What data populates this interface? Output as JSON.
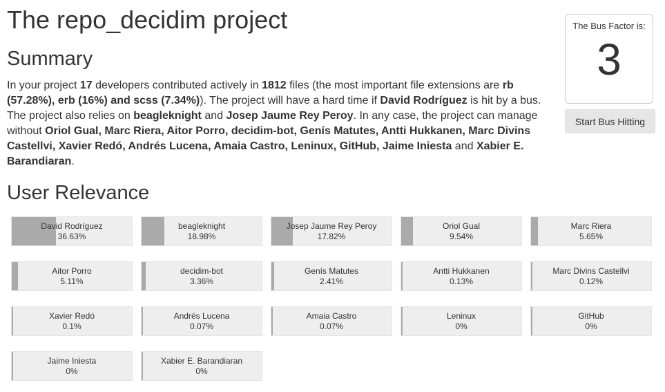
{
  "page": {
    "title": "The repo_decidim project"
  },
  "summary": {
    "title": "Summary",
    "p1": "In your project ",
    "dev_count": "17",
    "p2": " developers contributed actively in ",
    "file_count": "1812",
    "p3": " files (the most important file extensions are ",
    "ext1": "rb (57.28%)",
    "p4": ", ",
    "ext2": "erb (16%)",
    "p5": " and ",
    "ext3": "scss (7.34%)",
    "p6": "). The project will have a hard time if ",
    "critical_dev": "David Rodríguez",
    "p7": " is hit by a bus. The project also relies on ",
    "relies1": "beagleknight",
    "p8": " and ",
    "relies2": "Josep Jaume Rey Peroy",
    "p9": ". In any case, the project can manage without ",
    "without_list": "Oriol Gual, Marc Riera, Aitor Porro, decidim-bot, Genís Matutes, Antti Hukkanen, Marc Divins Castellvi, Xavier Redó, Andrés Lucena, Amaia Castro, Leninux, GitHub, Jaime Iniesta",
    "p10": " and ",
    "without_last": "Xabier E. Barandiaran",
    "p11": "."
  },
  "bus_factor": {
    "label": "The Bus Factor is:",
    "value": "3",
    "button_label": "Start Bus Hitting"
  },
  "relevance": {
    "title": "User Relevance",
    "users": [
      {
        "name": "David Rodríguez",
        "percent": "36.63%",
        "value": 36.63
      },
      {
        "name": "beagleknight",
        "percent": "18.98%",
        "value": 18.98
      },
      {
        "name": "Josep Jaume Rey Peroy",
        "percent": "17.82%",
        "value": 17.82
      },
      {
        "name": "Oriol Gual",
        "percent": "9.54%",
        "value": 9.54
      },
      {
        "name": "Marc Riera",
        "percent": "5.65%",
        "value": 5.65
      },
      {
        "name": "Aitor Porro",
        "percent": "5.11%",
        "value": 5.11
      },
      {
        "name": "decidim-bot",
        "percent": "3.36%",
        "value": 3.36
      },
      {
        "name": "Genís Matutes",
        "percent": "2.41%",
        "value": 2.41
      },
      {
        "name": "Antti Hukkanen",
        "percent": "0.13%",
        "value": 0.13
      },
      {
        "name": "Marc Divins Castellvi",
        "percent": "0.12%",
        "value": 0.12
      },
      {
        "name": "Xavier Redó",
        "percent": "0.1%",
        "value": 0.1
      },
      {
        "name": "Andrés Lucena",
        "percent": "0.07%",
        "value": 0.07
      },
      {
        "name": "Amaia Castro",
        "percent": "0.07%",
        "value": 0.07
      },
      {
        "name": "Leninux",
        "percent": "0%",
        "value": 0
      },
      {
        "name": "GitHub",
        "percent": "0%",
        "value": 0
      },
      {
        "name": "Jaime Iniesta",
        "percent": "0%",
        "value": 0
      },
      {
        "name": "Xabier E. Barandiaran",
        "percent": "0%",
        "value": 0
      }
    ]
  },
  "colors": {
    "bar_fill": "#aaaaaa",
    "card_background": "#eeeeee",
    "text": "#333333"
  }
}
